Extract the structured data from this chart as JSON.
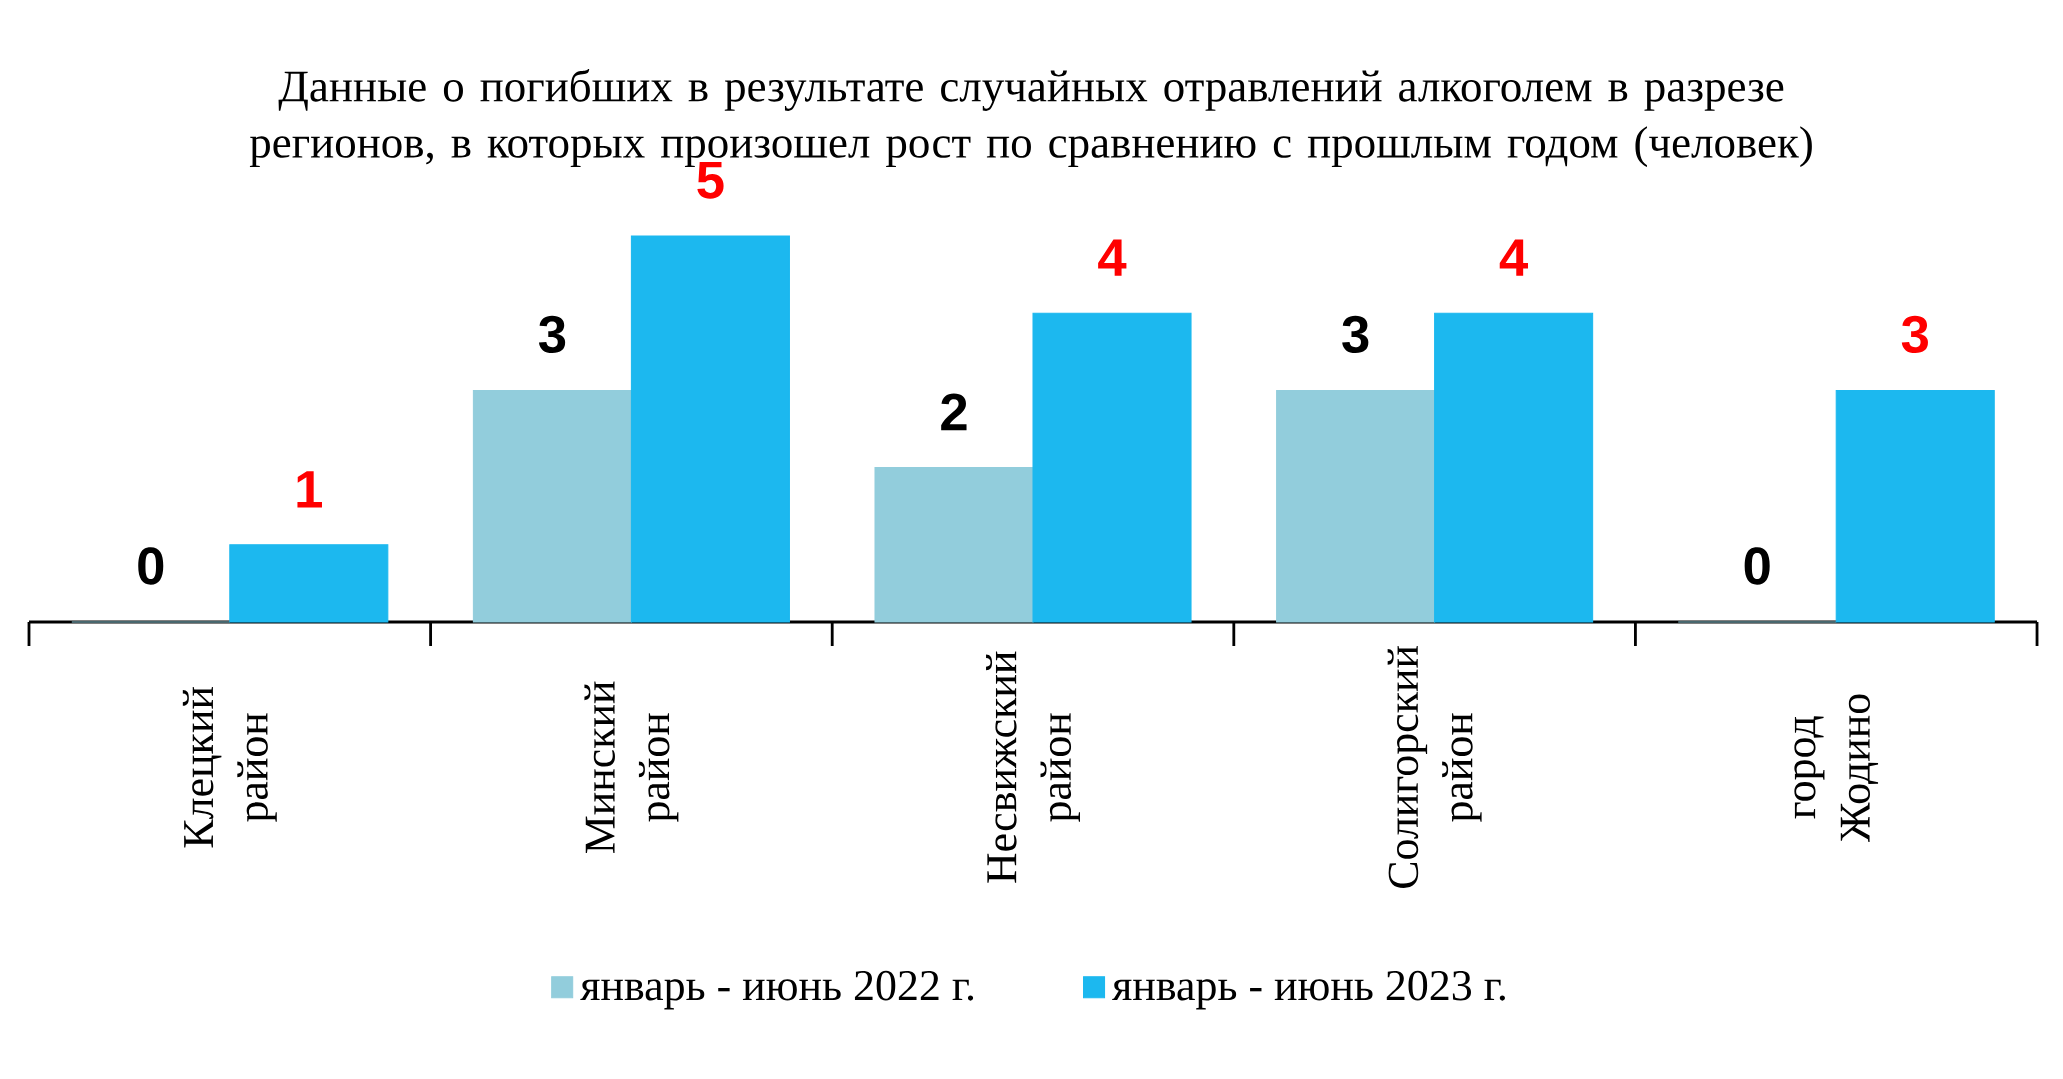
{
  "chart_data": {
    "type": "bar",
    "title": "Данные о погибших в результате случайных отравлений алкоголем в разрезе регионов,  в которых произошел рост по сравнению с прошлым годом (человек)",
    "categories": [
      "Клецкий район",
      "Минский район",
      "Несвижский район",
      "Солигорский район",
      "город Жодино"
    ],
    "series": [
      {
        "name": "январь - июнь 2022 г.",
        "color": "#92cddc",
        "values": [
          0,
          3,
          2,
          3,
          0
        ]
      },
      {
        "name": "январь - июнь 2023 г.",
        "color": "#1cb8ef",
        "values": [
          1,
          5,
          4,
          4,
          3
        ]
      }
    ],
    "data_labels": true,
    "legend": "bottom"
  }
}
